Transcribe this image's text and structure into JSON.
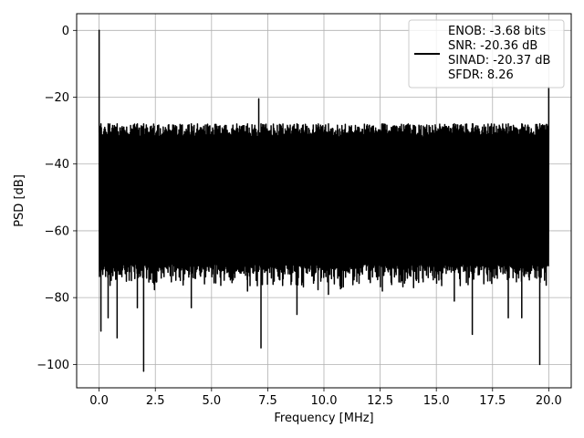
{
  "chart_data": {
    "type": "line",
    "title": "",
    "xlabel": "Frequency [MHz]",
    "ylabel": "PSD [dB]",
    "xlim": [
      -1.0,
      21.0
    ],
    "ylim": [
      -107,
      5
    ],
    "xticks": [
      0.0,
      2.5,
      5.0,
      7.5,
      10.0,
      12.5,
      15.0,
      17.5,
      20.0
    ],
    "xtick_labels": [
      "0.0",
      "2.5",
      "5.0",
      "7.5",
      "10.0",
      "12.5",
      "15.0",
      "17.5",
      "20.0"
    ],
    "yticks": [
      0,
      -20,
      -40,
      -60,
      -80,
      -100
    ],
    "ytick_labels": [
      "0",
      "−20",
      "−40",
      "−60",
      "−80",
      "−100"
    ],
    "grid": true,
    "legend_position": "top-right",
    "series": [
      {
        "name": "",
        "color": "#000000",
        "x_start": 0.0,
        "x_end": 20.0,
        "noise_floor_upper": -28,
        "noise_floor_lower": -72,
        "peaks": [
          {
            "x": 0.0,
            "y": 0
          },
          {
            "x": 7.1,
            "y": -20.5
          },
          {
            "x": 20.0,
            "y": -17
          }
        ],
        "dips": [
          {
            "x": 0.08,
            "y": -90
          },
          {
            "x": 0.4,
            "y": -86
          },
          {
            "x": 0.8,
            "y": -92
          },
          {
            "x": 1.7,
            "y": -83
          },
          {
            "x": 1.98,
            "y": -102
          },
          {
            "x": 4.1,
            "y": -83
          },
          {
            "x": 6.6,
            "y": -78
          },
          {
            "x": 7.2,
            "y": -95
          },
          {
            "x": 8.8,
            "y": -85
          },
          {
            "x": 10.2,
            "y": -79
          },
          {
            "x": 12.6,
            "y": -78
          },
          {
            "x": 15.8,
            "y": -81
          },
          {
            "x": 16.6,
            "y": -91
          },
          {
            "x": 18.2,
            "y": -86
          },
          {
            "x": 18.8,
            "y": -86
          },
          {
            "x": 19.6,
            "y": -100
          }
        ]
      }
    ],
    "legend": {
      "entries": [
        "ENOB: -3.68 bits",
        "SNR: -20.36 dB",
        "SINAD: -20.37 dB",
        "SFDR: 8.26"
      ]
    }
  }
}
